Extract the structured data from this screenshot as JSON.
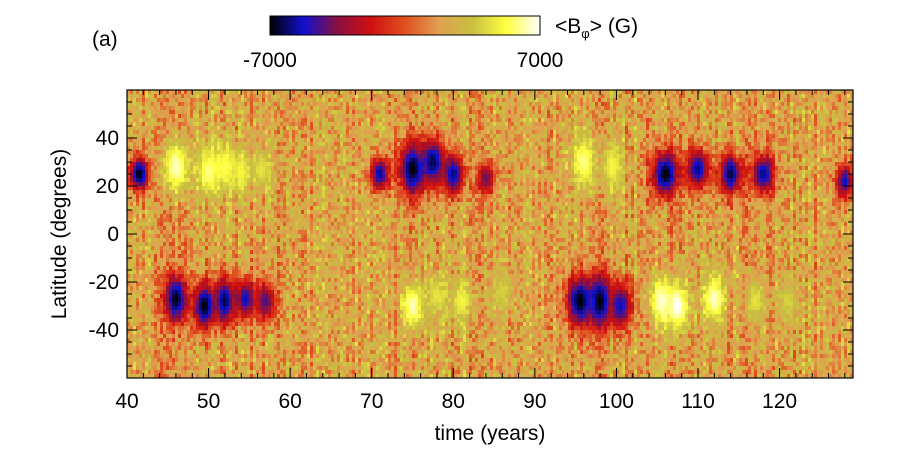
{
  "chart_data": {
    "type": "heatmap",
    "panel_label": "(a)",
    "colorbar": {
      "label_main": "<B",
      "label_sub": "φ",
      "label_tail": "> (G)",
      "min_label": "-7000",
      "max_label": "7000",
      "range": [
        -7000,
        7000
      ],
      "colors": [
        "#000000",
        "#1010d0",
        "#8a1040",
        "#d01010",
        "#e05020",
        "#e0a050",
        "#c8c040",
        "#ffff40",
        "#ffffff"
      ]
    },
    "xlabel": "time (years)",
    "ylabel": "Latitude (degrees)",
    "xlim": [
      40,
      129
    ],
    "ylim": [
      -60,
      60
    ],
    "xticks": [
      40,
      50,
      60,
      70,
      80,
      90,
      100,
      110,
      120
    ],
    "yticks": [
      -40,
      -20,
      0,
      20,
      40
    ],
    "x_minor_step": 2,
    "y_minor_step": 5,
    "background_value": 2000,
    "features": [
      {
        "time": 41.5,
        "latitude": 25,
        "value": -7000,
        "dt": 0.9,
        "dlat": 5
      },
      {
        "time": 46,
        "latitude": 28,
        "value": 6500,
        "dt": 1.2,
        "dlat": 8
      },
      {
        "time": 50,
        "latitude": 26,
        "value": 6000,
        "dt": 1.0,
        "dlat": 7
      },
      {
        "time": 52,
        "latitude": 28,
        "value": 5500,
        "dt": 1.0,
        "dlat": 7
      },
      {
        "time": 54,
        "latitude": 26,
        "value": 5000,
        "dt": 0.9,
        "dlat": 6
      },
      {
        "time": 56.5,
        "latitude": 27,
        "value": 4500,
        "dt": 0.9,
        "dlat": 6
      },
      {
        "time": 46,
        "latitude": -27,
        "value": -7000,
        "dt": 1.0,
        "dlat": 7
      },
      {
        "time": 49.5,
        "latitude": -30,
        "value": -7000,
        "dt": 1.0,
        "dlat": 7
      },
      {
        "time": 52,
        "latitude": -28,
        "value": -6500,
        "dt": 0.9,
        "dlat": 7
      },
      {
        "time": 54.5,
        "latitude": -27,
        "value": -5500,
        "dt": 0.9,
        "dlat": 6
      },
      {
        "time": 57,
        "latitude": -28,
        "value": -4500,
        "dt": 0.9,
        "dlat": 6
      },
      {
        "time": 71,
        "latitude": 25,
        "value": -6000,
        "dt": 0.8,
        "dlat": 5
      },
      {
        "time": 75,
        "latitude": 27,
        "value": -7000,
        "dt": 1.2,
        "dlat": 8
      },
      {
        "time": 77.5,
        "latitude": 30,
        "value": -6500,
        "dt": 1.0,
        "dlat": 7
      },
      {
        "time": 80,
        "latitude": 25,
        "value": -6000,
        "dt": 1.0,
        "dlat": 6
      },
      {
        "time": 84,
        "latitude": 23,
        "value": -4000,
        "dt": 0.8,
        "dlat": 5
      },
      {
        "time": 75,
        "latitude": -30,
        "value": 6500,
        "dt": 0.9,
        "dlat": 7
      },
      {
        "time": 78,
        "latitude": -26,
        "value": 4500,
        "dt": 0.9,
        "dlat": 6
      },
      {
        "time": 81,
        "latitude": -28,
        "value": 5000,
        "dt": 0.9,
        "dlat": 6
      },
      {
        "time": 86,
        "latitude": -24,
        "value": 4000,
        "dt": 0.9,
        "dlat": 6
      },
      {
        "time": 96,
        "latitude": 30,
        "value": 6000,
        "dt": 1.0,
        "dlat": 8
      },
      {
        "time": 99.5,
        "latitude": 28,
        "value": 5000,
        "dt": 1.0,
        "dlat": 7
      },
      {
        "time": 95.5,
        "latitude": -28,
        "value": -7000,
        "dt": 1.2,
        "dlat": 8
      },
      {
        "time": 98,
        "latitude": -28,
        "value": -7000,
        "dt": 1.0,
        "dlat": 8
      },
      {
        "time": 100.5,
        "latitude": -30,
        "value": -5500,
        "dt": 1.0,
        "dlat": 7
      },
      {
        "time": 106,
        "latitude": 25,
        "value": -7000,
        "dt": 1.2,
        "dlat": 7
      },
      {
        "time": 110,
        "latitude": 27,
        "value": -6000,
        "dt": 1.0,
        "dlat": 6
      },
      {
        "time": 114,
        "latitude": 25,
        "value": -6500,
        "dt": 1.0,
        "dlat": 6
      },
      {
        "time": 118,
        "latitude": 25,
        "value": -6000,
        "dt": 1.0,
        "dlat": 6
      },
      {
        "time": 128,
        "latitude": 22,
        "value": -5500,
        "dt": 0.8,
        "dlat": 5
      },
      {
        "time": 105.5,
        "latitude": -28,
        "value": 6500,
        "dt": 1.0,
        "dlat": 7
      },
      {
        "time": 107.5,
        "latitude": -30,
        "value": 7000,
        "dt": 1.0,
        "dlat": 7
      },
      {
        "time": 112,
        "latitude": -27,
        "value": 6500,
        "dt": 1.0,
        "dlat": 7
      },
      {
        "time": 117,
        "latitude": -28,
        "value": 4500,
        "dt": 0.9,
        "dlat": 6
      },
      {
        "time": 121,
        "latitude": -28,
        "value": 4000,
        "dt": 0.9,
        "dlat": 6
      }
    ]
  }
}
